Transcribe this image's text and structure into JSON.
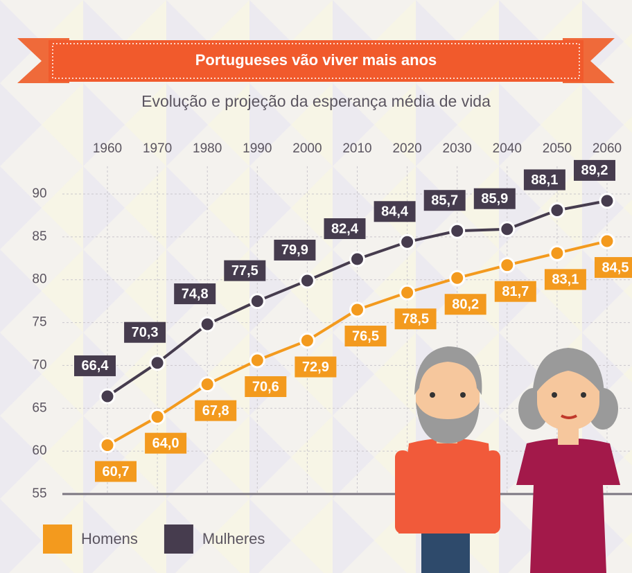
{
  "chart_data": {
    "type": "line",
    "title": "Portugueses vão viver mais anos",
    "subtitle": "Evolução e projeção da esperança média de vida",
    "x": [
      1960,
      1970,
      1980,
      1990,
      2000,
      2010,
      2020,
      2030,
      2040,
      2050,
      2060
    ],
    "xlim": [
      1960,
      2060
    ],
    "xticks": [
      1960,
      1970,
      1980,
      1990,
      2000,
      2010,
      2020,
      2030,
      2040,
      2050,
      2060
    ],
    "ylim": [
      55,
      90
    ],
    "yticks": [
      55,
      60,
      65,
      70,
      75,
      80,
      85,
      90
    ],
    "grid": true,
    "legend": "bottom-left",
    "series": [
      {
        "name": "Homens",
        "color": "#f39a1e",
        "values": [
          60.7,
          64.0,
          67.8,
          70.6,
          72.9,
          76.5,
          78.5,
          80.2,
          81.7,
          83.1,
          84.5
        ],
        "value_labels": [
          "60,7",
          "64,0",
          "67,8",
          "70,6",
          "72,9",
          "76,5",
          "78,5",
          "80,2",
          "81,7",
          "83,1",
          "84,5"
        ]
      },
      {
        "name": "Mulheres",
        "color": "#463c4e",
        "values": [
          66.4,
          70.3,
          74.8,
          77.5,
          79.9,
          82.4,
          84.4,
          85.7,
          85.9,
          88.1,
          89.2
        ],
        "value_labels": [
          "66,4",
          "70,3",
          "74,8",
          "77,5",
          "79,9",
          "82,4",
          "84,4",
          "85,7",
          "85,9",
          "88,1",
          "89,2"
        ]
      }
    ]
  }
}
